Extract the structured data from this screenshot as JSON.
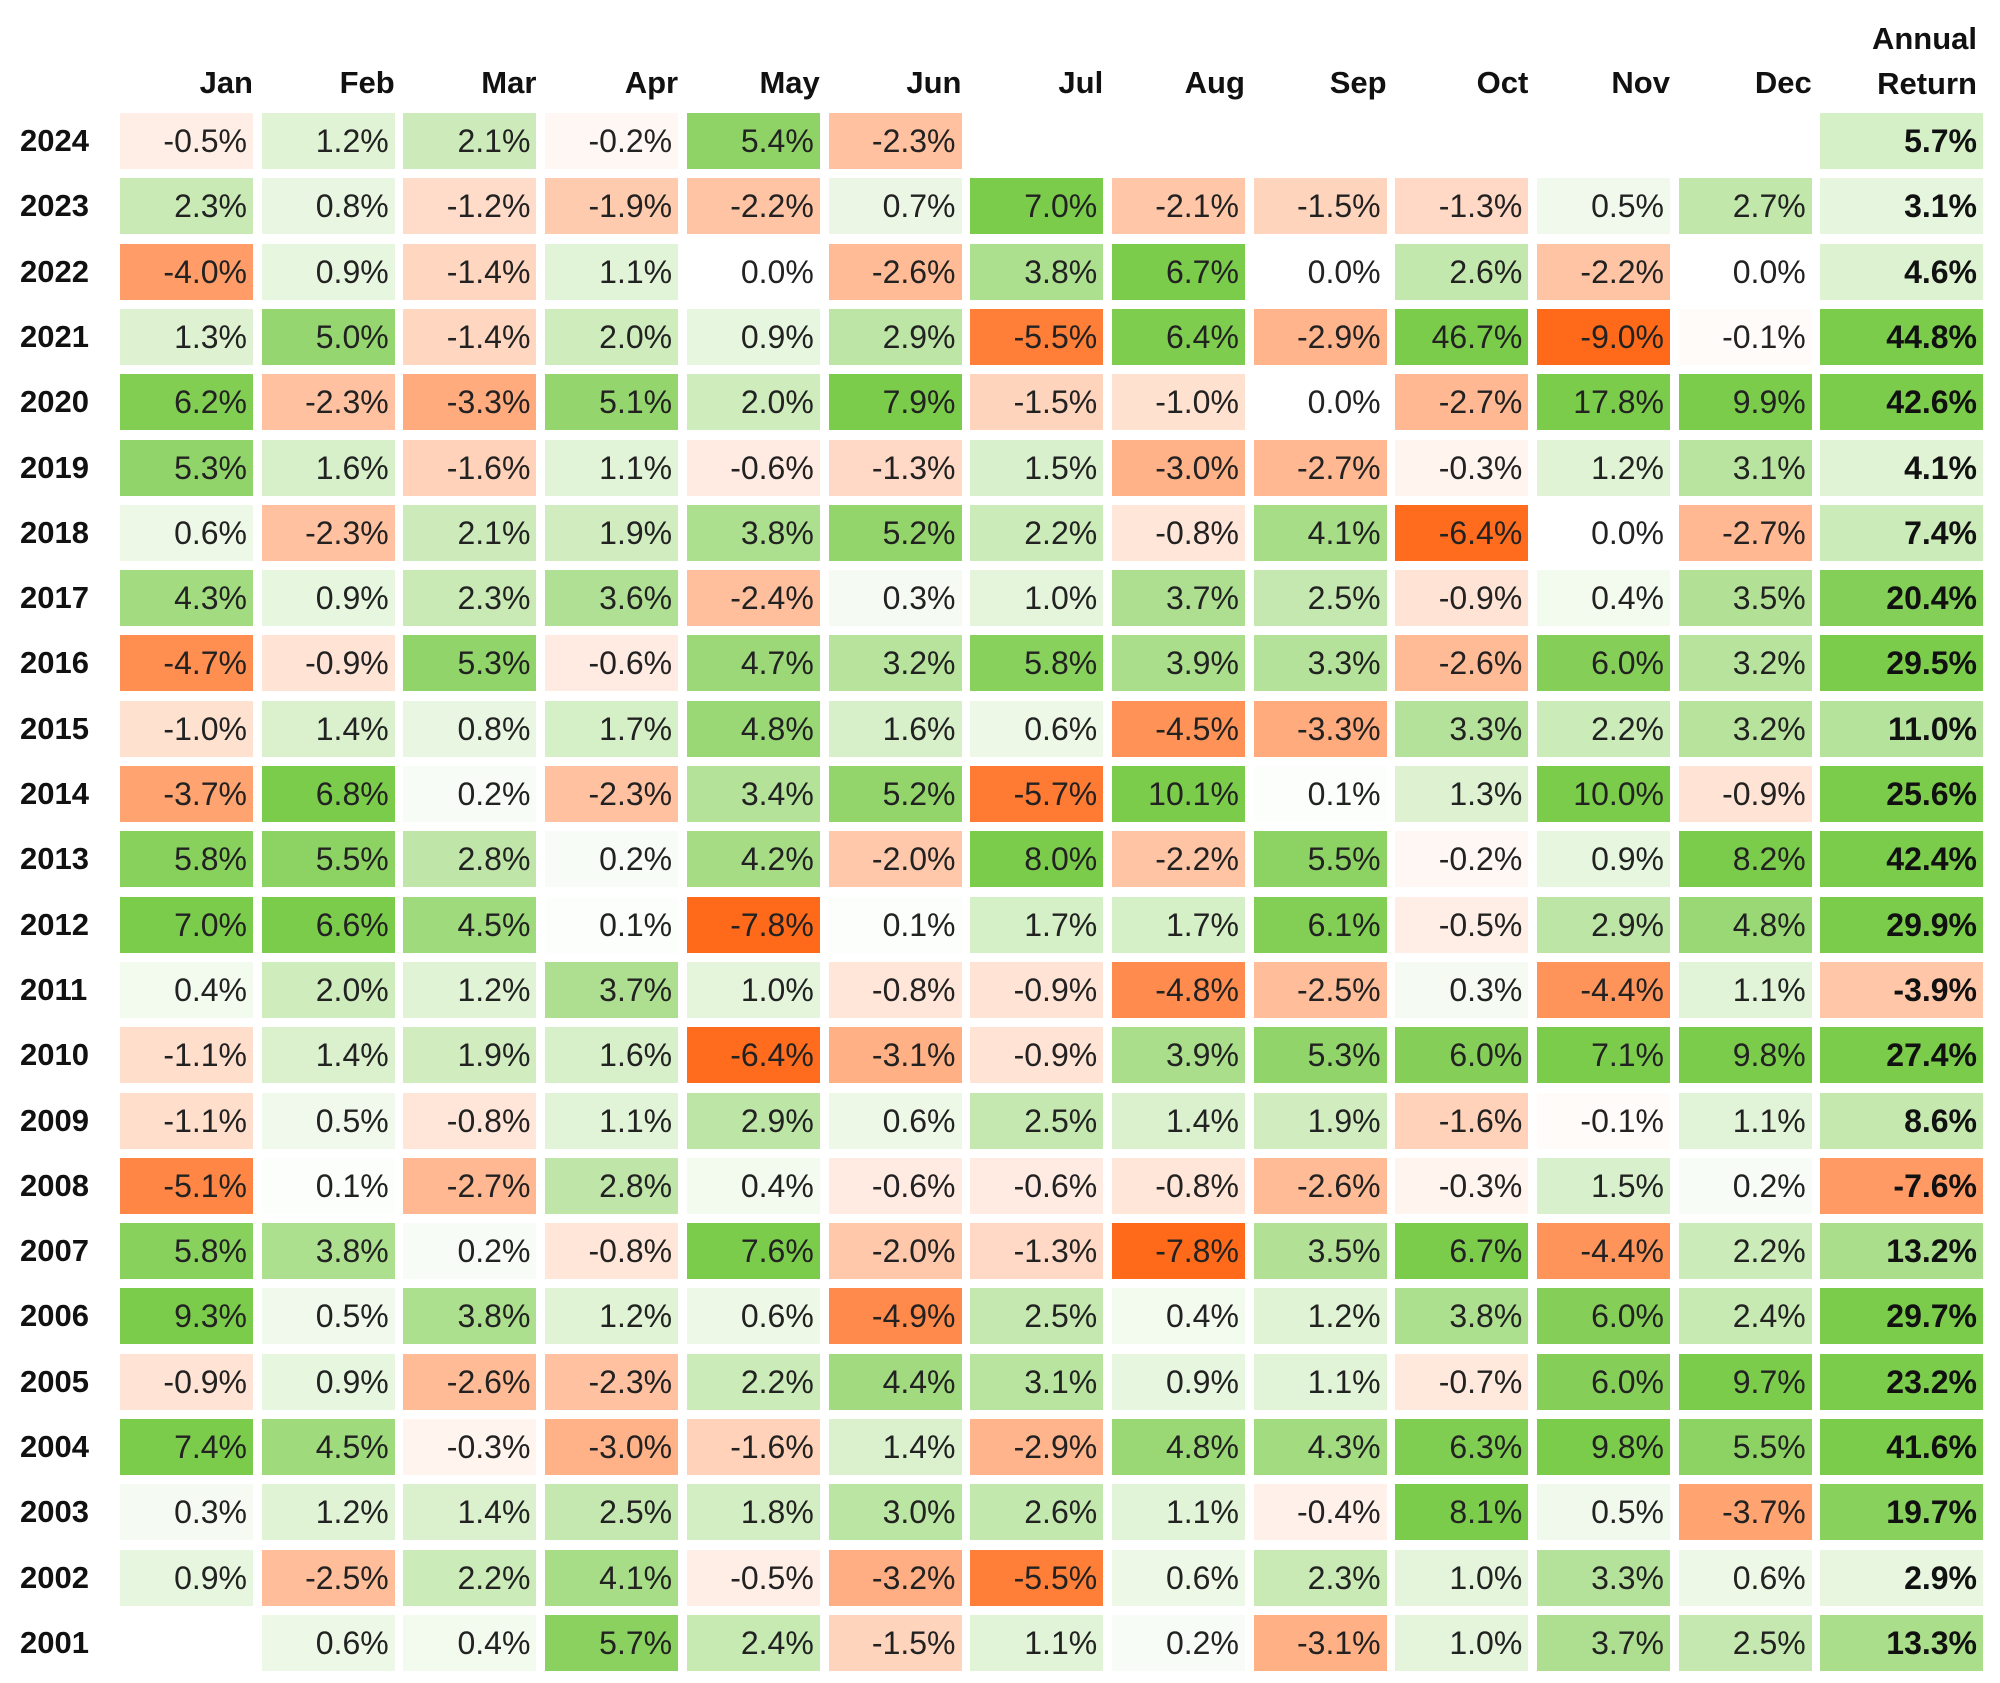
{
  "chart_data": {
    "type": "heatmap",
    "columns": [
      "Jan",
      "Feb",
      "Mar",
      "Apr",
      "May",
      "Jun",
      "Jul",
      "Aug",
      "Sep",
      "Oct",
      "Nov",
      "Dec"
    ],
    "annual_header": [
      "Annual",
      "Return"
    ],
    "rows": [
      {
        "year": "2024",
        "months": [
          "-0.5%",
          "1.2%",
          "2.1%",
          "-0.2%",
          "5.4%",
          "-2.3%",
          "",
          "",
          "",
          "",
          "",
          ""
        ],
        "annual": "5.7%"
      },
      {
        "year": "2023",
        "months": [
          "2.3%",
          "0.8%",
          "-1.2%",
          "-1.9%",
          "-2.2%",
          "0.7%",
          "7.0%",
          "-2.1%",
          "-1.5%",
          "-1.3%",
          "0.5%",
          "2.7%"
        ],
        "annual": "3.1%"
      },
      {
        "year": "2022",
        "months": [
          "-4.0%",
          "0.9%",
          "-1.4%",
          "1.1%",
          "0.0%",
          "-2.6%",
          "3.8%",
          "6.7%",
          "0.0%",
          "2.6%",
          "-2.2%",
          "0.0%"
        ],
        "annual": "4.6%"
      },
      {
        "year": "2021",
        "months": [
          "1.3%",
          "5.0%",
          "-1.4%",
          "2.0%",
          "0.9%",
          "2.9%",
          "-5.5%",
          "6.4%",
          "-2.9%",
          "46.7%",
          "-9.0%",
          "-0.1%"
        ],
        "annual": "44.8%"
      },
      {
        "year": "2020",
        "months": [
          "6.2%",
          "-2.3%",
          "-3.3%",
          "5.1%",
          "2.0%",
          "7.9%",
          "-1.5%",
          "-1.0%",
          "0.0%",
          "-2.7%",
          "17.8%",
          "9.9%"
        ],
        "annual": "42.6%"
      },
      {
        "year": "2019",
        "months": [
          "5.3%",
          "1.6%",
          "-1.6%",
          "1.1%",
          "-0.6%",
          "-1.3%",
          "1.5%",
          "-3.0%",
          "-2.7%",
          "-0.3%",
          "1.2%",
          "3.1%"
        ],
        "annual": "4.1%"
      },
      {
        "year": "2018",
        "months": [
          "0.6%",
          "-2.3%",
          "2.1%",
          "1.9%",
          "3.8%",
          "5.2%",
          "2.2%",
          "-0.8%",
          "4.1%",
          "-6.4%",
          "0.0%",
          "-2.7%"
        ],
        "annual": "7.4%"
      },
      {
        "year": "2017",
        "months": [
          "4.3%",
          "0.9%",
          "2.3%",
          "3.6%",
          "-2.4%",
          "0.3%",
          "1.0%",
          "3.7%",
          "2.5%",
          "-0.9%",
          "0.4%",
          "3.5%"
        ],
        "annual": "20.4%"
      },
      {
        "year": "2016",
        "months": [
          "-4.7%",
          "-0.9%",
          "5.3%",
          "-0.6%",
          "4.7%",
          "3.2%",
          "5.8%",
          "3.9%",
          "3.3%",
          "-2.6%",
          "6.0%",
          "3.2%"
        ],
        "annual": "29.5%"
      },
      {
        "year": "2015",
        "months": [
          "-1.0%",
          "1.4%",
          "0.8%",
          "1.7%",
          "4.8%",
          "1.6%",
          "0.6%",
          "-4.5%",
          "-3.3%",
          "3.3%",
          "2.2%",
          "3.2%"
        ],
        "annual": "11.0%"
      },
      {
        "year": "2014",
        "months": [
          "-3.7%",
          "6.8%",
          "0.2%",
          "-2.3%",
          "3.4%",
          "5.2%",
          "-5.7%",
          "10.1%",
          "0.1%",
          "1.3%",
          "10.0%",
          "-0.9%"
        ],
        "annual": "25.6%"
      },
      {
        "year": "2013",
        "months": [
          "5.8%",
          "5.5%",
          "2.8%",
          "0.2%",
          "4.2%",
          "-2.0%",
          "8.0%",
          "-2.2%",
          "5.5%",
          "-0.2%",
          "0.9%",
          "8.2%"
        ],
        "annual": "42.4%"
      },
      {
        "year": "2012",
        "months": [
          "7.0%",
          "6.6%",
          "4.5%",
          "0.1%",
          "-7.8%",
          "0.1%",
          "1.7%",
          "1.7%",
          "6.1%",
          "-0.5%",
          "2.9%",
          "4.8%"
        ],
        "annual": "29.9%"
      },
      {
        "year": "2011",
        "months": [
          "0.4%",
          "2.0%",
          "1.2%",
          "3.7%",
          "1.0%",
          "-0.8%",
          "-0.9%",
          "-4.8%",
          "-2.5%",
          "0.3%",
          "-4.4%",
          "1.1%"
        ],
        "annual": "-3.9%"
      },
      {
        "year": "2010",
        "months": [
          "-1.1%",
          "1.4%",
          "1.9%",
          "1.6%",
          "-6.4%",
          "-3.1%",
          "-0.9%",
          "3.9%",
          "5.3%",
          "6.0%",
          "7.1%",
          "9.8%"
        ],
        "annual": "27.4%"
      },
      {
        "year": "2009",
        "months": [
          "-1.1%",
          "0.5%",
          "-0.8%",
          "1.1%",
          "2.9%",
          "0.6%",
          "2.5%",
          "1.4%",
          "1.9%",
          "-1.6%",
          "-0.1%",
          "1.1%"
        ],
        "annual": "8.6%"
      },
      {
        "year": "2008",
        "months": [
          "-5.1%",
          "0.1%",
          "-2.7%",
          "2.8%",
          "0.4%",
          "-0.6%",
          "-0.6%",
          "-0.8%",
          "-2.6%",
          "-0.3%",
          "1.5%",
          "0.2%"
        ],
        "annual": "-7.6%"
      },
      {
        "year": "2007",
        "months": [
          "5.8%",
          "3.8%",
          "0.2%",
          "-0.8%",
          "7.6%",
          "-2.0%",
          "-1.3%",
          "-7.8%",
          "3.5%",
          "6.7%",
          "-4.4%",
          "2.2%"
        ],
        "annual": "13.2%"
      },
      {
        "year": "2006",
        "months": [
          "9.3%",
          "0.5%",
          "3.8%",
          "1.2%",
          "0.6%",
          "-4.9%",
          "2.5%",
          "0.4%",
          "1.2%",
          "3.8%",
          "6.0%",
          "2.4%"
        ],
        "annual": "29.7%"
      },
      {
        "year": "2005",
        "months": [
          "-0.9%",
          "0.9%",
          "-2.6%",
          "-2.3%",
          "2.2%",
          "4.4%",
          "3.1%",
          "0.9%",
          "1.1%",
          "-0.7%",
          "6.0%",
          "9.7%"
        ],
        "annual": "23.2%"
      },
      {
        "year": "2004",
        "months": [
          "7.4%",
          "4.5%",
          "-0.3%",
          "-3.0%",
          "-1.6%",
          "1.4%",
          "-2.9%",
          "4.8%",
          "4.3%",
          "6.3%",
          "9.8%",
          "5.5%"
        ],
        "annual": "41.6%"
      },
      {
        "year": "2003",
        "months": [
          "0.3%",
          "1.2%",
          "1.4%",
          "2.5%",
          "1.8%",
          "3.0%",
          "2.6%",
          "1.1%",
          "-0.4%",
          "8.1%",
          "0.5%",
          "-3.7%"
        ],
        "annual": "19.7%"
      },
      {
        "year": "2002",
        "months": [
          "0.9%",
          "-2.5%",
          "2.2%",
          "4.1%",
          "-0.5%",
          "-3.2%",
          "-5.5%",
          "0.6%",
          "2.3%",
          "1.0%",
          "3.3%",
          "0.6%"
        ],
        "annual": "2.9%"
      },
      {
        "year": "2001",
        "months": [
          "",
          "0.6%",
          "0.4%",
          "5.7%",
          "2.4%",
          "-1.5%",
          "1.1%",
          "0.2%",
          "-3.1%",
          "1.0%",
          "3.7%",
          "2.5%"
        ],
        "annual": "13.3%"
      }
    ],
    "color_scale": {
      "negative_max": "#ff6a1a",
      "neutral": "#ffffff",
      "positive_max": "#7ccc4c"
    }
  }
}
